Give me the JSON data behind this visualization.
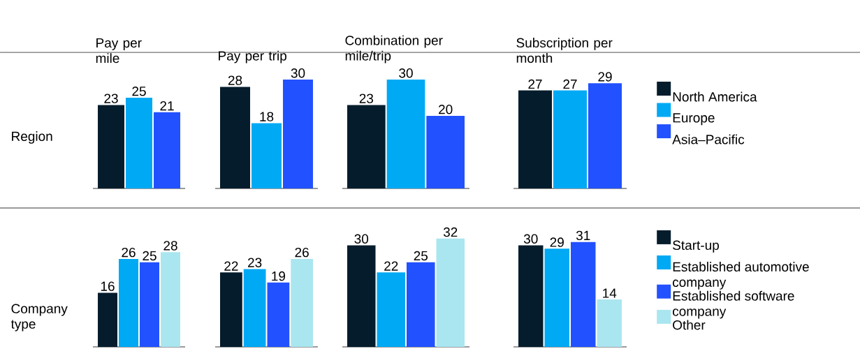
{
  "chart_data": [
    {
      "type": "bar",
      "title": "Pay per mile",
      "ylabel": "Region",
      "categories": [
        null
      ],
      "data_labels": true,
      "legend": false,
      "series": [
        {
          "color": "#051c2c",
          "values": [
            23
          ]
        },
        {
          "color": "#00a9f4",
          "values": [
            25
          ]
        },
        {
          "color": "#2251ff",
          "values": [
            21
          ]
        }
      ]
    },
    {
      "type": "bar",
      "title": "Pay per trip",
      "categories": [
        null
      ],
      "data_labels": true,
      "legend": false,
      "series": [
        {
          "color": "#051c2c",
          "values": [
            28
          ]
        },
        {
          "color": "#00a9f4",
          "values": [
            18
          ]
        },
        {
          "color": "#2251ff",
          "values": [
            30
          ]
        }
      ]
    },
    {
      "type": "bar",
      "title": "Combination per mile/trip",
      "categories": [
        null
      ],
      "data_labels": true,
      "legend": false,
      "series": [
        {
          "color": "#051c2c",
          "values": [
            23
          ]
        },
        {
          "color": "#00a9f4",
          "values": [
            30
          ]
        },
        {
          "color": "#2251ff",
          "values": [
            20
          ]
        }
      ]
    },
    {
      "type": "bar",
      "title": "Subscription per month",
      "categories": [
        null
      ],
      "data_labels": true,
      "legend": "right",
      "series": [
        {
          "name": "North America",
          "color": "#051c2c",
          "values": [
            27
          ]
        },
        {
          "name": "Europe",
          "color": "#00a9f4",
          "values": [
            27
          ]
        },
        {
          "name": "Asia–Pacific",
          "color": "#2251ff",
          "values": [
            29
          ]
        }
      ]
    },
    {
      "type": "bar",
      "ylabel": "Company type",
      "categories": [
        null
      ],
      "data_labels": true,
      "legend": false,
      "series": [
        {
          "color": "#051c2c",
          "values": [
            16
          ]
        },
        {
          "color": "#00a9f4",
          "values": [
            26
          ]
        },
        {
          "color": "#2251ff",
          "values": [
            25
          ]
        },
        {
          "color": "#aae6f0",
          "values": [
            28
          ]
        }
      ]
    },
    {
      "type": "bar",
      "categories": [
        null
      ],
      "data_labels": true,
      "legend": false,
      "series": [
        {
          "color": "#051c2c",
          "values": [
            22
          ]
        },
        {
          "color": "#00a9f4",
          "values": [
            23
          ]
        },
        {
          "color": "#2251ff",
          "values": [
            19
          ]
        },
        {
          "color": "#aae6f0",
          "values": [
            26
          ]
        }
      ]
    },
    {
      "type": "bar",
      "categories": [
        null
      ],
      "data_labels": true,
      "legend": false,
      "series": [
        {
          "color": "#051c2c",
          "values": [
            30
          ]
        },
        {
          "color": "#00a9f4",
          "values": [
            22
          ]
        },
        {
          "color": "#2251ff",
          "values": [
            25
          ]
        },
        {
          "color": "#aae6f0",
          "values": [
            32
          ]
        }
      ]
    },
    {
      "type": "bar",
      "categories": [
        null
      ],
      "data_labels": true,
      "legend": "right",
      "series": [
        {
          "name": "Start-up",
          "color": "#051c2c",
          "values": [
            30
          ]
        },
        {
          "name": "Established automotive company",
          "color": "#00a9f4",
          "values": [
            29
          ]
        },
        {
          "name": "Established software company",
          "color": "#2251ff",
          "values": [
            31
          ]
        },
        {
          "name": "Other",
          "color": "#aae6f0",
          "values": [
            14
          ]
        }
      ]
    }
  ]
}
